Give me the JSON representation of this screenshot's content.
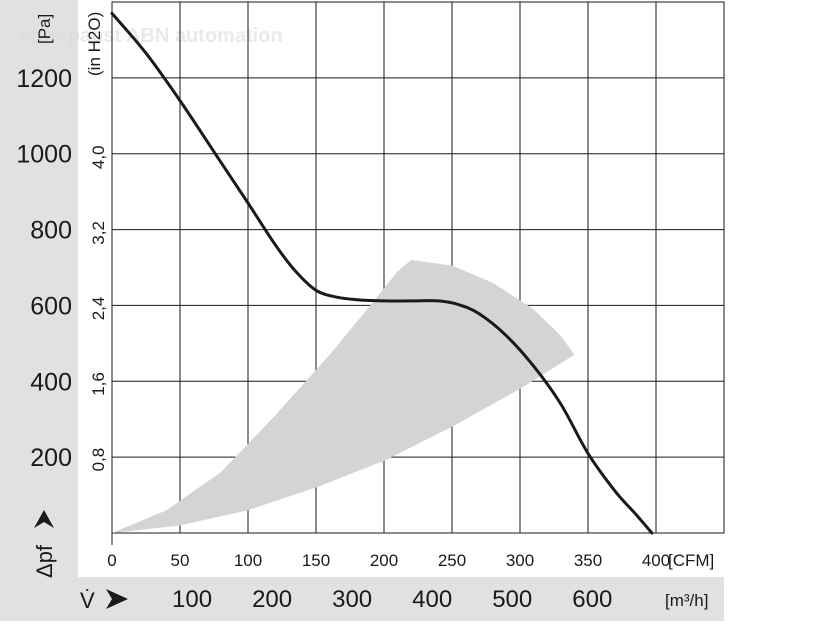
{
  "chart_data": {
    "type": "line",
    "x_unit_primary": "[CFM]",
    "x_unit_secondary": "[m³/h]",
    "y_unit_primary": "[Pa]",
    "y_unit_secondary": "(in H2O)",
    "xlabel": "V̇",
    "ylabel": "Δpf",
    "xlim": [
      0,
      450
    ],
    "ylim": [
      0,
      1400
    ],
    "x_ticks_cfm": [
      "0",
      "50",
      "100",
      "150",
      "200",
      "250",
      "300",
      "350",
      "400"
    ],
    "x_ticks_m3h": [
      "100",
      "200",
      "300",
      "400",
      "500",
      "600"
    ],
    "y_ticks_pa": [
      "200",
      "400",
      "600",
      "800",
      "1000",
      "1200"
    ],
    "y_ticks_inh2o": [
      "0,8",
      "1,6",
      "2,4",
      "3,2",
      "4,0"
    ],
    "series": [
      {
        "x": [
          0,
          25,
          50,
          75,
          100,
          120,
          135,
          150,
          165,
          180,
          200,
          220,
          240,
          255,
          270,
          290,
          310,
          330,
          350,
          370,
          385,
          397
        ],
        "y": [
          1370,
          1265,
          1140,
          1005,
          870,
          760,
          690,
          640,
          622,
          615,
          612,
          612,
          612,
          602,
          578,
          520,
          440,
          340,
          210,
          110,
          50,
          0
        ]
      }
    ],
    "operating_range": {
      "upper_x": [
        0,
        40,
        80,
        120,
        160,
        190,
        210,
        220
      ],
      "upper_y": [
        0,
        60,
        160,
        310,
        470,
        600,
        690,
        720
      ],
      "outer_x": [
        220,
        250,
        280,
        310,
        330,
        340
      ],
      "outer_y": [
        720,
        705,
        660,
        590,
        520,
        470
      ],
      "lower_x": [
        340,
        300,
        250,
        200,
        150,
        100,
        50,
        0
      ],
      "lower_y": [
        470,
        380,
        280,
        190,
        120,
        60,
        20,
        0
      ]
    },
    "watermark": "ebm-papst ABN automation"
  }
}
